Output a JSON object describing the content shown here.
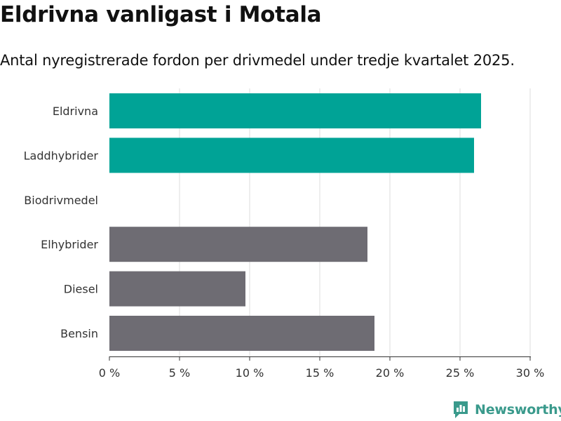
{
  "chart_data": {
    "type": "bar",
    "orientation": "horizontal",
    "title": "Eldrivna vanligast i Motala",
    "subtitle": "Antal nyregistrerade fordon per drivmedel under tredje kvartalet 2025.",
    "categories": [
      "Eldrivna",
      "Laddhybrider",
      "Biodrivmedel",
      "Elhybrider",
      "Diesel",
      "Bensin"
    ],
    "values": [
      26.5,
      26.0,
      0,
      18.4,
      9.7,
      18.9
    ],
    "bar_colors": [
      "#00a396",
      "#00a396",
      "#6e6c73",
      "#6e6c73",
      "#6e6c73",
      "#6e6c73"
    ],
    "xlim": [
      0,
      30
    ],
    "xticks": [
      0,
      5,
      10,
      15,
      20,
      25,
      30
    ],
    "xtick_labels": [
      "0 %",
      "5 %",
      "10 %",
      "15 %",
      "20 %",
      "25 %",
      "30 %"
    ],
    "xlabel": "",
    "ylabel": "",
    "grid": true
  },
  "brand": {
    "name": "Newsworthy",
    "color": "#3a9a8c",
    "icon": "newsworthy-logo-icon"
  }
}
